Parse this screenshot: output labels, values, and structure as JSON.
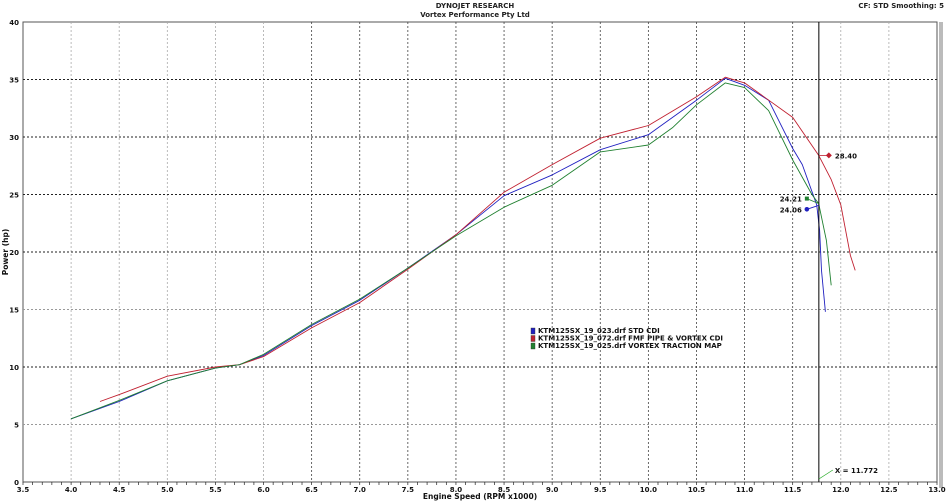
{
  "header": {
    "title": "DYNOJET RESEARCH",
    "subtitle": "Vortex Performance Pty Ltd",
    "settings": "CF: STD  Smoothing: 5"
  },
  "chart_data": {
    "type": "line",
    "xlabel": "Engine Speed (RPM x1000)",
    "ylabel": "Power (hp)",
    "xlim": [
      3.5,
      13.0
    ],
    "ylim": [
      0,
      40
    ],
    "xticks": [
      "3.5",
      "4.0",
      "4.5",
      "5.0",
      "5.5",
      "6.0",
      "6.5",
      "7.0",
      "7.5",
      "8.0",
      "8.5",
      "9.0",
      "9.5",
      "10.0",
      "10.5",
      "11.0",
      "11.5",
      "12.0",
      "12.5",
      "13.0"
    ],
    "yticks": [
      "0",
      "5",
      "10",
      "15",
      "20",
      "25",
      "30",
      "35",
      "40"
    ],
    "grid": true,
    "legend_position": "center",
    "series": [
      {
        "name": "KTM125SX_19_023.drf STD CDI",
        "color": "#2020c0",
        "x": [
          4.0,
          4.5,
          5.0,
          5.5,
          5.75,
          6.0,
          6.5,
          7.0,
          7.5,
          8.0,
          8.5,
          9.0,
          9.5,
          10.0,
          10.5,
          10.8,
          11.0,
          11.25,
          11.5,
          11.6,
          11.75,
          11.78,
          11.8,
          11.84
        ],
        "y": [
          5.5,
          7.0,
          8.8,
          9.9,
          10.2,
          11.0,
          13.6,
          15.8,
          18.6,
          21.5,
          24.9,
          26.7,
          28.9,
          30.2,
          33.2,
          35.1,
          34.5,
          33.2,
          29.0,
          27.6,
          24.1,
          21.9,
          18.4,
          14.8
        ]
      },
      {
        "name": "KTM125SX_19_072.drf FMF PIPE & VORTEX CDI",
        "color": "#c02030",
        "x": [
          4.3,
          4.5,
          5.0,
          5.5,
          5.75,
          6.0,
          6.5,
          7.0,
          7.5,
          8.0,
          8.5,
          9.0,
          9.5,
          10.0,
          10.5,
          10.8,
          11.0,
          11.5,
          11.77,
          11.9,
          12.0,
          12.05,
          12.1,
          12.15
        ],
        "y": [
          7.0,
          7.6,
          9.2,
          10.0,
          10.2,
          10.9,
          13.4,
          15.6,
          18.5,
          21.5,
          25.2,
          27.6,
          29.9,
          31.0,
          33.5,
          35.2,
          34.7,
          31.7,
          28.4,
          26.3,
          24.1,
          21.9,
          19.7,
          18.4
        ]
      },
      {
        "name": "KTM125SX_19_025.drf VORTEX TRACTION MAP",
        "color": "#208030",
        "x": [
          4.0,
          4.5,
          5.0,
          5.5,
          5.75,
          6.0,
          6.5,
          7.0,
          7.5,
          8.0,
          8.5,
          9.0,
          9.5,
          10.0,
          10.25,
          10.5,
          10.8,
          11.0,
          11.25,
          11.5,
          11.7,
          11.77,
          11.85,
          11.9
        ],
        "y": [
          5.5,
          7.1,
          8.8,
          9.9,
          10.2,
          11.1,
          13.7,
          15.9,
          18.6,
          21.4,
          23.9,
          25.8,
          28.7,
          29.3,
          30.8,
          32.8,
          34.7,
          34.3,
          32.3,
          28.0,
          25.0,
          24.2,
          21.0,
          17.1
        ]
      }
    ],
    "cursor": {
      "x": 11.772,
      "label": "X = 11.772"
    },
    "cursor_values": [
      {
        "series": 1,
        "value": "28.40"
      },
      {
        "series": 2,
        "value": "24.21"
      },
      {
        "series": 0,
        "value": "24.06"
      }
    ]
  }
}
